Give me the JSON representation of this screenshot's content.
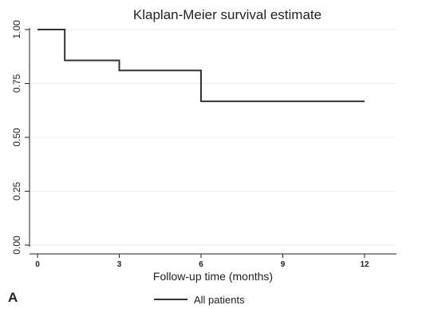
{
  "chart_data": {
    "type": "line",
    "step": true,
    "title": "Klaplan-Meier survival estimate",
    "xlabel": "Follow-up time (months)",
    "ylabel": "",
    "xlim": [
      0,
      12
    ],
    "ylim": [
      0,
      1
    ],
    "xticks": [
      0,
      3,
      6,
      9,
      12
    ],
    "xtick_labels": [
      "0",
      "3",
      "6",
      "9",
      "12"
    ],
    "yticks": [
      0,
      0.25,
      0.5,
      0.75,
      1
    ],
    "ytick_labels": [
      "0.00",
      "0.25",
      "0.50",
      "0.75",
      "1.00"
    ],
    "grid": true,
    "legend": "bottom",
    "panel_label": "A",
    "series": [
      {
        "name": "All patients",
        "color": "#333333",
        "x": [
          0,
          1,
          3,
          6,
          12
        ],
        "y": [
          1.0,
          0.857,
          0.81,
          0.667,
          0.667
        ]
      }
    ]
  }
}
